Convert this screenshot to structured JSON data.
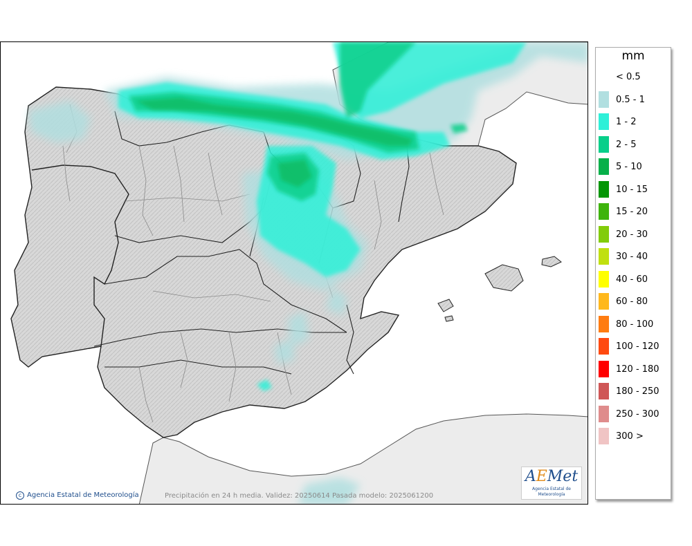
{
  "legend": {
    "title": "mm",
    "items": [
      {
        "label": "< 0.5",
        "color": ""
      },
      {
        "label": "0.5 - 1",
        "color": "#b1dfe0"
      },
      {
        "label": "1 - 2",
        "color": "#2ef0d8"
      },
      {
        "label": "2 - 5",
        "color": "#08cf8a"
      },
      {
        "label": "5 - 10",
        "color": "#07b04a"
      },
      {
        "label": "10 - 15",
        "color": "#049606"
      },
      {
        "label": "15 - 20",
        "color": "#3eb40c"
      },
      {
        "label": "20 - 30",
        "color": "#82cc0a"
      },
      {
        "label": "30 - 40",
        "color": "#c0e010"
      },
      {
        "label": "40 - 60",
        "color": "#ffff00"
      },
      {
        "label": "60 - 80",
        "color": "#ffb81c"
      },
      {
        "label": "80 - 100",
        "color": "#ff7c10"
      },
      {
        "label": "100 - 120",
        "color": "#ff4a10"
      },
      {
        "label": "120 - 180",
        "color": "#ff0000"
      },
      {
        "label": "180 - 250",
        "color": "#cf5656"
      },
      {
        "label": "250 - 300",
        "color": "#df8c8c"
      },
      {
        "label": "300 >",
        "color": "#f0c4c4"
      }
    ]
  },
  "footer": {
    "copyright": "Agencia Estatal de Meteorología",
    "caption": "Precipitación en 24 h media. Validez: 20250614 Pasada modelo: 2025061200"
  },
  "logo": {
    "brand_a": "A",
    "brand_e": "E",
    "brand_rest": "Met",
    "subtitle": "Agencia Estatal de Meteorología"
  },
  "colors": {
    "sea": "#ffffff",
    "land": "#dcdcdc",
    "foreign_land": "#ececec",
    "border": "#222222",
    "province_border": "#8a8a8a"
  }
}
